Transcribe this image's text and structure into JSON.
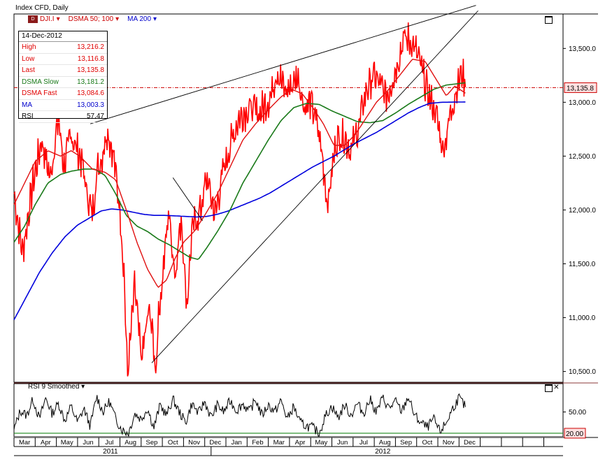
{
  "window": {
    "title": "Index CFD, Daily"
  },
  "legend": {
    "symbol_icon_text": "D",
    "symbol": "DJI.I",
    "dsma": "DSMA 50; 100",
    "ma": "MA 200",
    "dropdown_glyph": "▾"
  },
  "infobox": {
    "date": "14-Dec-2012",
    "rows": [
      {
        "label": "High",
        "value": "13,216.2",
        "color": "#e00000"
      },
      {
        "label": "Low",
        "value": "13,116.8",
        "color": "#e00000"
      },
      {
        "label": "Last",
        "value": "13,135.8",
        "color": "#e00000"
      },
      {
        "label": "DSMA Slow",
        "value": "13,181.2",
        "color": "#1a7a1a"
      },
      {
        "label": "DSMA Fast",
        "value": "13,084.6",
        "color": "#e00000"
      },
      {
        "label": "MA",
        "value": "13,003.3",
        "color": "#0000cc"
      },
      {
        "label": "RSI",
        "value": "57.47",
        "color": "#000000"
      }
    ]
  },
  "last_price_tag": "13,135.8",
  "rsi_panel": {
    "title": "RSI 9 Smoothed",
    "tag": "20.00",
    "close_glyph": "✕"
  },
  "colors": {
    "price": "#ff0000",
    "dsma_fast": "#e01010",
    "dsma_slow": "#1a7a1a",
    "ma": "#0000dd",
    "rsi": "#000000",
    "rsi_level": "#1a8a1a",
    "last_line": "#cc0000"
  },
  "chart_data": [
    {
      "type": "line",
      "title": "",
      "x_axis": {
        "months": [
          "Mar",
          "Apr",
          "May",
          "Jun",
          "Jul",
          "Aug",
          "Sep",
          "Oct",
          "Nov",
          "Dec",
          "Jan",
          "Feb",
          "Mar",
          "Apr",
          "May",
          "Jun",
          "Jul",
          "Aug",
          "Sep",
          "Oct",
          "Nov",
          "Dec"
        ],
        "years": [
          "2011",
          "2012"
        ]
      },
      "y_axis": {
        "ticks": [
          "13,500.0",
          "13,000.0",
          "12,500.0",
          "12,000.0",
          "11,500.0",
          "11,000.0",
          "10,500.0"
        ],
        "tick_values": [
          13500,
          13000,
          12500,
          12000,
          11500,
          11000,
          10500
        ],
        "range": [
          10400,
          13820
        ]
      },
      "x_range": [
        0,
        21.5
      ],
      "last_price": 13135.8,
      "price_keypoints": [
        [
          0,
          12150
        ],
        [
          0.4,
          11600
        ],
        [
          0.9,
          12250
        ],
        [
          1.3,
          12650
        ],
        [
          1.7,
          12300
        ],
        [
          2.1,
          12850
        ],
        [
          2.35,
          12400
        ],
        [
          2.7,
          12700
        ],
        [
          3.2,
          12450
        ],
        [
          3.45,
          12150
        ],
        [
          3.7,
          11950
        ],
        [
          3.9,
          12350
        ],
        [
          4.15,
          12500
        ],
        [
          4.4,
          12750
        ],
        [
          4.7,
          12500
        ],
        [
          5.0,
          12000
        ],
        [
          5.2,
          11400
        ],
        [
          5.35,
          10450
        ],
        [
          5.7,
          11300
        ],
        [
          6.0,
          10600
        ],
        [
          6.4,
          11100
        ],
        [
          6.7,
          10500
        ],
        [
          6.8,
          10980
        ],
        [
          7.0,
          11350
        ],
        [
          7.3,
          12000
        ],
        [
          7.6,
          11400
        ],
        [
          7.9,
          11950
        ],
        [
          8.15,
          11100
        ],
        [
          8.4,
          11800
        ],
        [
          8.8,
          12000
        ],
        [
          9.1,
          12300
        ],
        [
          9.5,
          11950
        ],
        [
          9.8,
          12300
        ],
        [
          10.2,
          12600
        ],
        [
          10.6,
          12850
        ],
        [
          11.1,
          12950
        ],
        [
          11.6,
          12900
        ],
        [
          12.1,
          13050
        ],
        [
          12.4,
          13300
        ],
        [
          12.8,
          13100
        ],
        [
          13.1,
          13150
        ],
        [
          13.4,
          13250
        ],
        [
          13.7,
          12950
        ],
        [
          14.0,
          13000
        ],
        [
          14.3,
          12800
        ],
        [
          14.55,
          12500
        ],
        [
          14.8,
          12050
        ],
        [
          15.2,
          12650
        ],
        [
          15.55,
          12700
        ],
        [
          15.9,
          12550
        ],
        [
          16.3,
          12800
        ],
        [
          16.6,
          13100
        ],
        [
          17.0,
          13250
        ],
        [
          17.3,
          13150
        ],
        [
          17.6,
          13050
        ],
        [
          18.0,
          13300
        ],
        [
          18.4,
          13600
        ],
        [
          18.8,
          13550
        ],
        [
          19.1,
          13400
        ],
        [
          19.5,
          13100
        ],
        [
          19.9,
          12900
        ],
        [
          20.25,
          12550
        ],
        [
          20.6,
          12900
        ],
        [
          20.9,
          13150
        ],
        [
          21.15,
          13280
        ],
        [
          21.3,
          13140
        ]
      ],
      "dsma_fast_keypoints": [
        [
          0,
          12050
        ],
        [
          0.5,
          12250
        ],
        [
          1.0,
          12450
        ],
        [
          1.6,
          12550
        ],
        [
          2.2,
          12500
        ],
        [
          2.7,
          12550
        ],
        [
          3.1,
          12500
        ],
        [
          3.7,
          12380
        ],
        [
          4.3,
          12350
        ],
        [
          4.8,
          12280
        ],
        [
          5.3,
          12000
        ],
        [
          5.8,
          11700
        ],
        [
          6.3,
          11450
        ],
        [
          6.8,
          11280
        ],
        [
          7.2,
          11350
        ],
        [
          7.6,
          11550
        ],
        [
          8.0,
          11700
        ],
        [
          8.5,
          11800
        ],
        [
          9.0,
          11950
        ],
        [
          9.6,
          12150
        ],
        [
          10.2,
          12400
        ],
        [
          10.8,
          12650
        ],
        [
          11.4,
          12800
        ],
        [
          12.0,
          12930
        ],
        [
          12.6,
          13050
        ],
        [
          13.1,
          13120
        ],
        [
          13.6,
          13080
        ],
        [
          14.1,
          12950
        ],
        [
          14.6,
          12800
        ],
        [
          15.1,
          12600
        ],
        [
          15.6,
          12600
        ],
        [
          16.1,
          12700
        ],
        [
          16.6,
          12850
        ],
        [
          17.1,
          13000
        ],
        [
          17.6,
          13100
        ],
        [
          18.2,
          13250
        ],
        [
          18.8,
          13400
        ],
        [
          19.4,
          13380
        ],
        [
          19.9,
          13220
        ],
        [
          20.4,
          13060
        ],
        [
          20.8,
          13150
        ],
        [
          21.3,
          13085
        ]
      ],
      "dsma_slow_keypoints": [
        [
          0,
          11700
        ],
        [
          0.5,
          11850
        ],
        [
          1.0,
          12050
        ],
        [
          1.6,
          12250
        ],
        [
          2.2,
          12330
        ],
        [
          2.7,
          12360
        ],
        [
          3.3,
          12380
        ],
        [
          3.8,
          12380
        ],
        [
          4.3,
          12320
        ],
        [
          4.8,
          12150
        ],
        [
          5.3,
          11950
        ],
        [
          5.8,
          11850
        ],
        [
          6.3,
          11800
        ],
        [
          6.8,
          11730
        ],
        [
          7.3,
          11680
        ],
        [
          7.8,
          11620
        ],
        [
          8.3,
          11560
        ],
        [
          8.7,
          11540
        ],
        [
          9.1,
          11650
        ],
        [
          9.6,
          11800
        ],
        [
          10.2,
          12000
        ],
        [
          10.8,
          12250
        ],
        [
          11.4,
          12450
        ],
        [
          12.0,
          12650
        ],
        [
          12.6,
          12830
        ],
        [
          13.2,
          12950
        ],
        [
          13.8,
          12990
        ],
        [
          14.4,
          12980
        ],
        [
          15.0,
          12920
        ],
        [
          15.6,
          12870
        ],
        [
          16.2,
          12820
        ],
        [
          16.8,
          12810
        ],
        [
          17.4,
          12830
        ],
        [
          18.0,
          12900
        ],
        [
          18.6,
          12980
        ],
        [
          19.2,
          13050
        ],
        [
          19.8,
          13120
        ],
        [
          20.4,
          13160
        ],
        [
          21.3,
          13181
        ]
      ],
      "ma_keypoints": [
        [
          0,
          10980
        ],
        [
          0.6,
          11200
        ],
        [
          1.2,
          11420
        ],
        [
          1.8,
          11600
        ],
        [
          2.4,
          11750
        ],
        [
          3.0,
          11860
        ],
        [
          3.6,
          11930
        ],
        [
          4.1,
          11990
        ],
        [
          4.6,
          12010
        ],
        [
          5.1,
          12000
        ],
        [
          5.6,
          11980
        ],
        [
          6.1,
          11960
        ],
        [
          6.6,
          11950
        ],
        [
          7.1,
          11950
        ],
        [
          7.6,
          11945
        ],
        [
          8.1,
          11940
        ],
        [
          8.6,
          11935
        ],
        [
          9.1,
          11940
        ],
        [
          9.6,
          11960
        ],
        [
          10.1,
          11990
        ],
        [
          10.6,
          12030
        ],
        [
          11.1,
          12070
        ],
        [
          11.6,
          12110
        ],
        [
          12.1,
          12160
        ],
        [
          12.6,
          12220
        ],
        [
          13.1,
          12280
        ],
        [
          13.6,
          12340
        ],
        [
          14.1,
          12400
        ],
        [
          14.6,
          12450
        ],
        [
          15.1,
          12500
        ],
        [
          15.6,
          12560
        ],
        [
          16.1,
          12620
        ],
        [
          16.6,
          12670
        ],
        [
          17.1,
          12720
        ],
        [
          17.6,
          12780
        ],
        [
          18.1,
          12840
        ],
        [
          18.6,
          12900
        ],
        [
          19.1,
          12950
        ],
        [
          19.6,
          12990
        ],
        [
          20.2,
          13000
        ],
        [
          21.3,
          13003
        ]
      ],
      "trendlines": [
        {
          "from": [
            3.6,
            12800
          ],
          "to": [
            21.8,
            13900
          ]
        },
        {
          "from": [
            6.5,
            10580
          ],
          "to": [
            21.9,
            13850
          ]
        },
        {
          "from": [
            7.5,
            12300
          ],
          "to": [
            8.9,
            11900
          ]
        }
      ]
    },
    {
      "type": "line",
      "title": "RSI 9 Smoothed",
      "y_axis": {
        "ticks": [
          "50.00"
        ],
        "tick_values": [
          50
        ],
        "range": [
          15,
          90
        ]
      },
      "level": 20,
      "rsi_keypoints": [
        [
          0,
          25
        ],
        [
          0.3,
          52
        ],
        [
          0.6,
          45
        ],
        [
          0.9,
          68
        ],
        [
          1.2,
          40
        ],
        [
          1.5,
          70
        ],
        [
          1.8,
          48
        ],
        [
          2.1,
          62
        ],
        [
          2.4,
          38
        ],
        [
          2.7,
          58
        ],
        [
          3.0,
          35
        ],
        [
          3.3,
          55
        ],
        [
          3.6,
          30
        ],
        [
          3.9,
          72
        ],
        [
          4.2,
          50
        ],
        [
          4.5,
          65
        ],
        [
          4.8,
          40
        ],
        [
          5.1,
          25
        ],
        [
          5.4,
          20
        ],
        [
          5.7,
          48
        ],
        [
          6.0,
          40
        ],
        [
          6.3,
          55
        ],
        [
          6.6,
          28
        ],
        [
          6.9,
          60
        ],
        [
          7.2,
          45
        ],
        [
          7.5,
          68
        ],
        [
          7.8,
          50
        ],
        [
          8.1,
          35
        ],
        [
          8.4,
          62
        ],
        [
          8.7,
          48
        ],
        [
          9.0,
          65
        ],
        [
          9.3,
          42
        ],
        [
          9.6,
          60
        ],
        [
          9.9,
          50
        ],
        [
          10.2,
          66
        ],
        [
          10.5,
          52
        ],
        [
          10.8,
          62
        ],
        [
          11.1,
          50
        ],
        [
          11.4,
          68
        ],
        [
          11.7,
          45
        ],
        [
          12.0,
          60
        ],
        [
          12.3,
          50
        ],
        [
          12.6,
          66
        ],
        [
          12.9,
          40
        ],
        [
          13.2,
          58
        ],
        [
          13.5,
          35
        ],
        [
          13.8,
          30
        ],
        [
          14.1,
          28
        ],
        [
          14.4,
          20
        ],
        [
          14.7,
          45
        ],
        [
          15.0,
          58
        ],
        [
          15.3,
          42
        ],
        [
          15.6,
          60
        ],
        [
          15.9,
          45
        ],
        [
          16.2,
          62
        ],
        [
          16.5,
          48
        ],
        [
          16.8,
          68
        ],
        [
          17.1,
          50
        ],
        [
          17.4,
          70
        ],
        [
          17.7,
          55
        ],
        [
          18.0,
          65
        ],
        [
          18.3,
          50
        ],
        [
          18.6,
          72
        ],
        [
          18.9,
          45
        ],
        [
          19.2,
          35
        ],
        [
          19.5,
          28
        ],
        [
          19.8,
          40
        ],
        [
          20.1,
          22
        ],
        [
          20.4,
          35
        ],
        [
          20.7,
          55
        ],
        [
          21.0,
          70
        ],
        [
          21.3,
          57
        ]
      ]
    }
  ]
}
